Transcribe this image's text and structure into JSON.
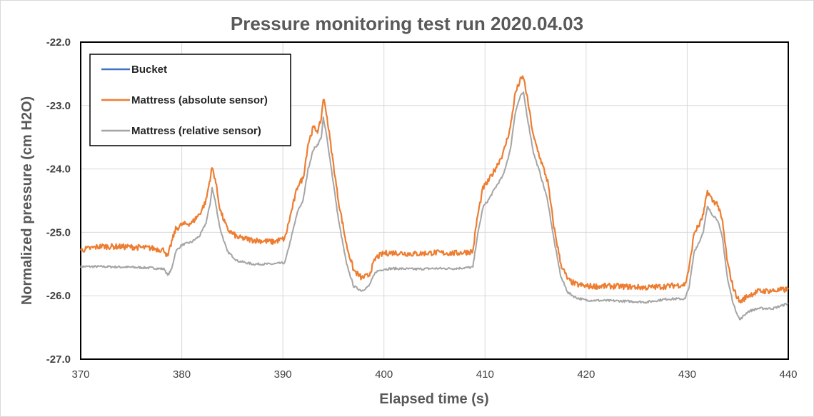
{
  "chart_data": {
    "type": "line",
    "title": "Pressure monitoring test run 2020.04.03",
    "xlabel": "Elapsed time (s)",
    "ylabel": "Normalized pressure (cm H2O)",
    "xlim": [
      370,
      440
    ],
    "ylim": [
      -27.0,
      -22.0
    ],
    "xticks": [
      "370",
      "380",
      "390",
      "400",
      "410",
      "420",
      "430",
      "440"
    ],
    "yticks": [
      "-22.0",
      "-23.0",
      "-24.0",
      "-25.0",
      "-26.0",
      "-27.0"
    ],
    "grid": true,
    "legend_position": "top-left",
    "series": [
      {
        "name": "Bucket",
        "color": "#4472c4",
        "x": [],
        "y": []
      },
      {
        "name": "Mattress (absolute sensor)",
        "color": "#ed7d31",
        "x": [
          370,
          372,
          375,
          377,
          378.3,
          378.6,
          379,
          379.4,
          380,
          381,
          381.8,
          382.4,
          382.8,
          383.0,
          383.3,
          383.8,
          384.5,
          385.5,
          387,
          389,
          390.2,
          390.8,
          391.5,
          392,
          392.5,
          393,
          393.5,
          393.8,
          394.0,
          394.3,
          394.8,
          395.5,
          396.3,
          397.0,
          397.8,
          398.5,
          399.2,
          400,
          401,
          403,
          405,
          407,
          408.8,
          409.2,
          409.8,
          410.3,
          411,
          411.8,
          412.5,
          413.0,
          413.5,
          413.8,
          414.2,
          414.8,
          415.5,
          416.2,
          416.8,
          417.5,
          418.2,
          419,
          420,
          423,
          426,
          428,
          429.8,
          430.2,
          430.7,
          431.2,
          431.6,
          432.0,
          432.5,
          433.0,
          433.5,
          434.0,
          434.6,
          435.2,
          436,
          437,
          438.5,
          440
        ],
        "y": [
          -25.28,
          -25.22,
          -25.23,
          -25.25,
          -25.28,
          -25.4,
          -25.15,
          -24.95,
          -24.88,
          -24.85,
          -24.7,
          -24.5,
          -24.15,
          -23.98,
          -24.15,
          -24.65,
          -24.95,
          -25.08,
          -25.12,
          -25.15,
          -25.1,
          -24.7,
          -24.25,
          -24.15,
          -23.6,
          -23.35,
          -23.4,
          -23.2,
          -22.88,
          -23.1,
          -23.7,
          -24.5,
          -25.2,
          -25.6,
          -25.72,
          -25.68,
          -25.4,
          -25.33,
          -25.32,
          -25.34,
          -25.32,
          -25.33,
          -25.3,
          -24.8,
          -24.3,
          -24.2,
          -24.0,
          -23.75,
          -23.35,
          -22.8,
          -22.6,
          -22.55,
          -22.9,
          -23.5,
          -23.85,
          -24.2,
          -24.9,
          -25.5,
          -25.75,
          -25.82,
          -25.85,
          -25.85,
          -25.87,
          -25.85,
          -25.82,
          -25.55,
          -25.0,
          -24.88,
          -24.72,
          -24.35,
          -24.5,
          -24.55,
          -24.85,
          -25.5,
          -25.9,
          -26.1,
          -26.0,
          -25.93,
          -25.92,
          -25.9
        ]
      },
      {
        "name": "Mattress (relative sensor)",
        "color": "#a5a5a5",
        "x": [
          370,
          372,
          375,
          377,
          378.3,
          378.6,
          379,
          379.4,
          380,
          381,
          381.8,
          382.4,
          382.8,
          383.0,
          383.3,
          383.8,
          384.5,
          385.5,
          387,
          389,
          390.2,
          390.8,
          391.5,
          392,
          392.5,
          393,
          393.5,
          393.8,
          394.0,
          394.3,
          394.8,
          395.5,
          396.3,
          397.0,
          397.8,
          398.5,
          399.2,
          400,
          401,
          403,
          405,
          407,
          408.8,
          409.2,
          409.8,
          410.3,
          411,
          411.8,
          412.5,
          413.0,
          413.5,
          413.8,
          414.2,
          414.8,
          415.5,
          416.2,
          416.8,
          417.5,
          418.2,
          419,
          420,
          423,
          426,
          428,
          429.8,
          430.2,
          430.7,
          431.2,
          431.6,
          432.0,
          432.5,
          433.0,
          433.5,
          434.0,
          434.6,
          435.2,
          436,
          437,
          438.5,
          440
        ],
        "y": [
          -25.54,
          -25.54,
          -25.55,
          -25.56,
          -25.58,
          -25.68,
          -25.58,
          -25.3,
          -25.2,
          -25.15,
          -25.05,
          -24.85,
          -24.55,
          -24.3,
          -24.5,
          -24.95,
          -25.3,
          -25.45,
          -25.5,
          -25.5,
          -25.48,
          -25.1,
          -24.65,
          -24.5,
          -24.0,
          -23.7,
          -23.6,
          -23.5,
          -23.2,
          -23.45,
          -24.0,
          -24.8,
          -25.5,
          -25.85,
          -25.92,
          -25.85,
          -25.62,
          -25.58,
          -25.57,
          -25.58,
          -25.57,
          -25.57,
          -25.55,
          -25.1,
          -24.6,
          -24.5,
          -24.3,
          -24.1,
          -23.7,
          -23.1,
          -22.85,
          -22.8,
          -23.2,
          -23.75,
          -24.1,
          -24.5,
          -25.1,
          -25.7,
          -25.95,
          -26.03,
          -26.07,
          -26.08,
          -26.1,
          -26.05,
          -26.05,
          -25.85,
          -25.3,
          -25.15,
          -24.98,
          -24.6,
          -24.72,
          -24.8,
          -25.1,
          -25.75,
          -26.15,
          -26.38,
          -26.25,
          -26.2,
          -26.2,
          -26.12
        ]
      }
    ]
  }
}
